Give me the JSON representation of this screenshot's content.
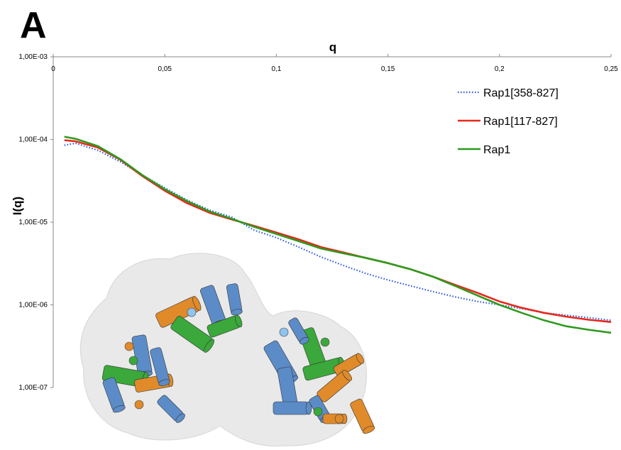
{
  "panel_label": "A",
  "colors": {
    "series_358": "#2b55e0",
    "series_117": "#e6291d",
    "series_rap1": "#2e9a1e",
    "axis": "#8a8a8a",
    "structure_blue": "#5b8cc8",
    "structure_green": "#3aa83a",
    "structure_orange": "#e08a2a",
    "surface": "#e6e6e6"
  },
  "chart_data": {
    "type": "line",
    "title": "",
    "xlabel": "q",
    "ylabel": "I(q)",
    "xlim": [
      0,
      0.25
    ],
    "ylim": [
      1e-07,
      0.001
    ],
    "yscale": "log",
    "x_axis_position": "top",
    "x_ticks": [
      0,
      0.05,
      0.1,
      0.15,
      0.2,
      0.25
    ],
    "x_tick_labels": [
      "0",
      "0,05",
      "0,1",
      "0,15",
      "0,2",
      "0,25"
    ],
    "y_ticks": [
      0.001,
      0.0001,
      1e-05,
      1e-06,
      1e-07
    ],
    "y_tick_labels": [
      "1,00E-03",
      "1,00E-04",
      "1,00E-05",
      "1,00E-06",
      "1,00E-07"
    ],
    "grid": false,
    "legend_position": "top-right",
    "series": [
      {
        "name": "Rap1[358-827]",
        "style": "dotted",
        "color": "#2b55e0",
        "x": [
          0.005,
          0.01,
          0.02,
          0.03,
          0.04,
          0.05,
          0.06,
          0.07,
          0.08,
          0.09,
          0.1,
          0.11,
          0.12,
          0.13,
          0.14,
          0.15,
          0.16,
          0.17,
          0.18,
          0.19,
          0.2,
          0.21,
          0.22,
          0.23,
          0.24,
          0.25
        ],
        "y": [
          8.5e-05,
          9e-05,
          7.4e-05,
          5.4e-05,
          3.7e-05,
          2.6e-05,
          1.85e-05,
          1.4e-05,
          1.15e-05,
          8e-06,
          6.5e-06,
          5e-06,
          3.8e-06,
          3e-06,
          2.4e-06,
          2e-06,
          1.7e-06,
          1.45e-06,
          1.25e-06,
          1.1e-06,
          1e-06,
          9e-07,
          8e-07,
          7.5e-07,
          7e-07,
          6.5e-07
        ]
      },
      {
        "name": "Rap1[117-827]",
        "style": "solid",
        "color": "#e6291d",
        "x": [
          0.005,
          0.01,
          0.02,
          0.03,
          0.04,
          0.05,
          0.06,
          0.07,
          0.08,
          0.09,
          0.1,
          0.11,
          0.12,
          0.13,
          0.14,
          0.15,
          0.16,
          0.17,
          0.18,
          0.19,
          0.2,
          0.21,
          0.22,
          0.23,
          0.24,
          0.25
        ],
        "y": [
          9.8e-05,
          9.5e-05,
          8e-05,
          5.7e-05,
          3.6e-05,
          2.4e-05,
          1.7e-05,
          1.3e-05,
          1.08e-05,
          9e-06,
          7.5e-06,
          6.2e-06,
          5e-06,
          4.3e-06,
          3.7e-06,
          3.2e-06,
          2.7e-06,
          2.2e-06,
          1.75e-06,
          1.4e-06,
          1.1e-06,
          9.2e-07,
          8e-07,
          7.2e-07,
          6.6e-07,
          6.2e-07
        ]
      },
      {
        "name": "Rap1",
        "style": "solid",
        "color": "#2e9a1e",
        "x": [
          0.005,
          0.01,
          0.02,
          0.03,
          0.04,
          0.05,
          0.06,
          0.07,
          0.08,
          0.09,
          0.1,
          0.11,
          0.12,
          0.13,
          0.14,
          0.15,
          0.16,
          0.17,
          0.18,
          0.19,
          0.2,
          0.21,
          0.22,
          0.23,
          0.24,
          0.25
        ],
        "y": [
          0.000108,
          0.000102,
          8.3e-05,
          5.8e-05,
          3.7e-05,
          2.5e-05,
          1.8e-05,
          1.35e-05,
          1.1e-05,
          8.8e-06,
          7.2e-06,
          5.9e-06,
          4.8e-06,
          4.2e-06,
          3.7e-06,
          3.2e-06,
          2.7e-06,
          2.2e-06,
          1.7e-06,
          1.3e-06,
          1e-06,
          8e-07,
          6.5e-07,
          5.5e-07,
          5e-07,
          4.6e-07
        ]
      }
    ]
  }
}
